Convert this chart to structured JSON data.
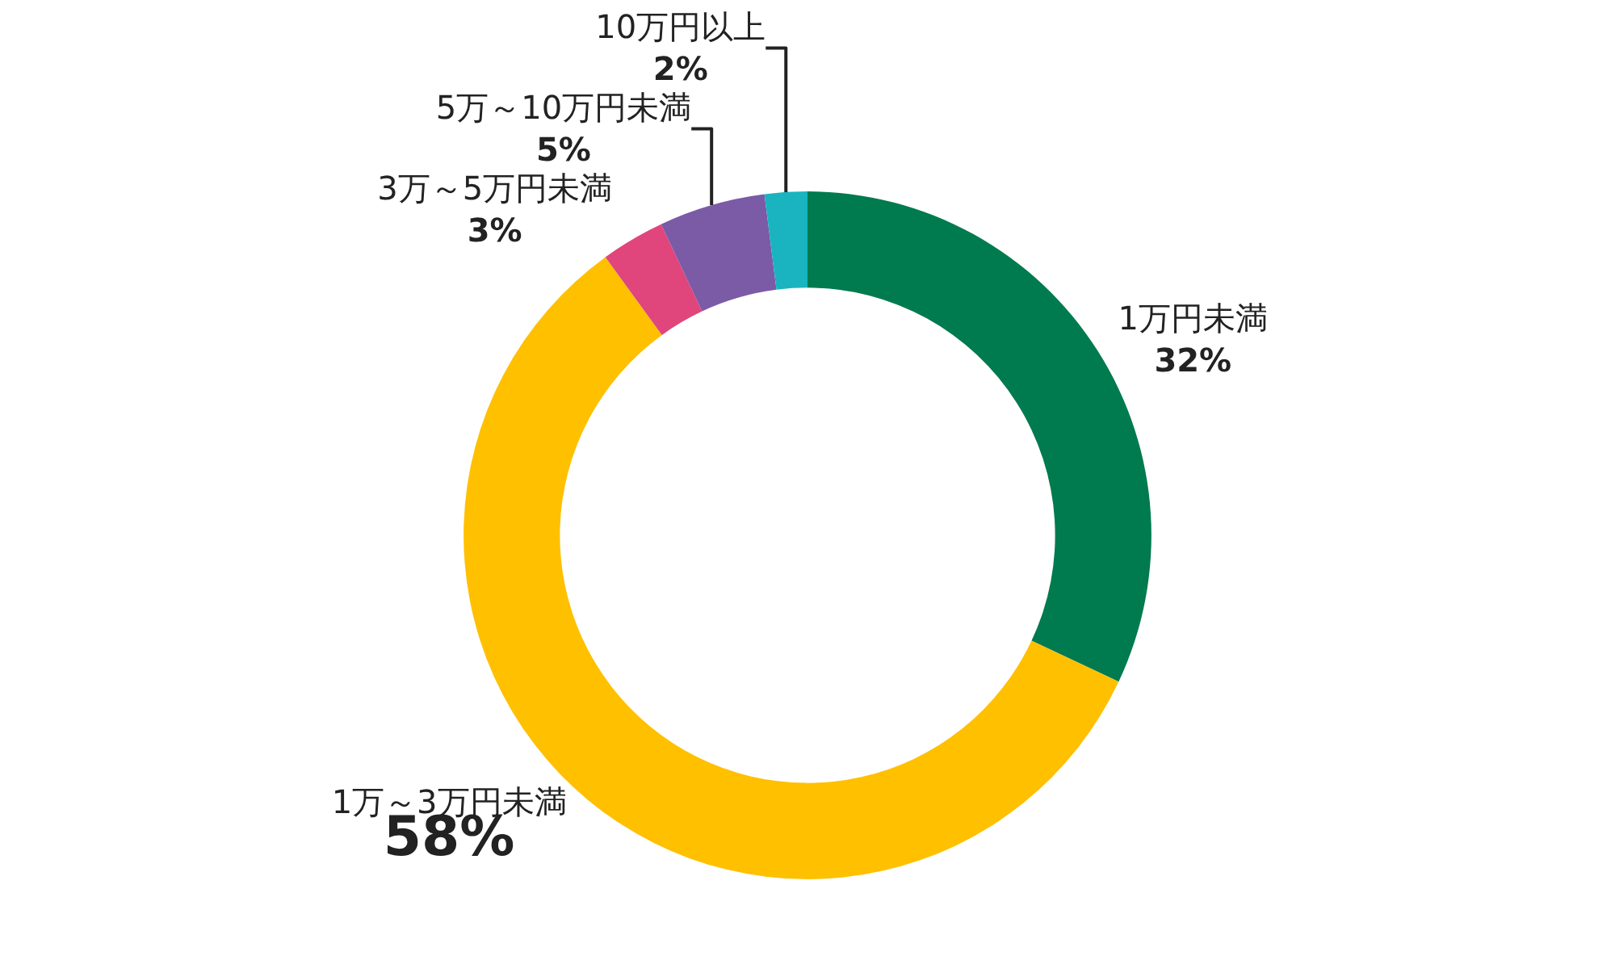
{
  "chart_data": {
    "type": "donut",
    "categories": [
      "1万円未満",
      "1万～3万円未満",
      "3万～5万円未満",
      "5万～10万円未満",
      "10万円以上"
    ],
    "values": [
      32,
      58,
      3,
      5,
      2
    ],
    "value_labels": [
      "32%",
      "58%",
      "3%",
      "5%",
      "2%"
    ],
    "colors": [
      "#007a4f",
      "#ffc000",
      "#e0457b",
      "#7b5aa6",
      "#1ab4c0"
    ],
    "legend": false
  }
}
